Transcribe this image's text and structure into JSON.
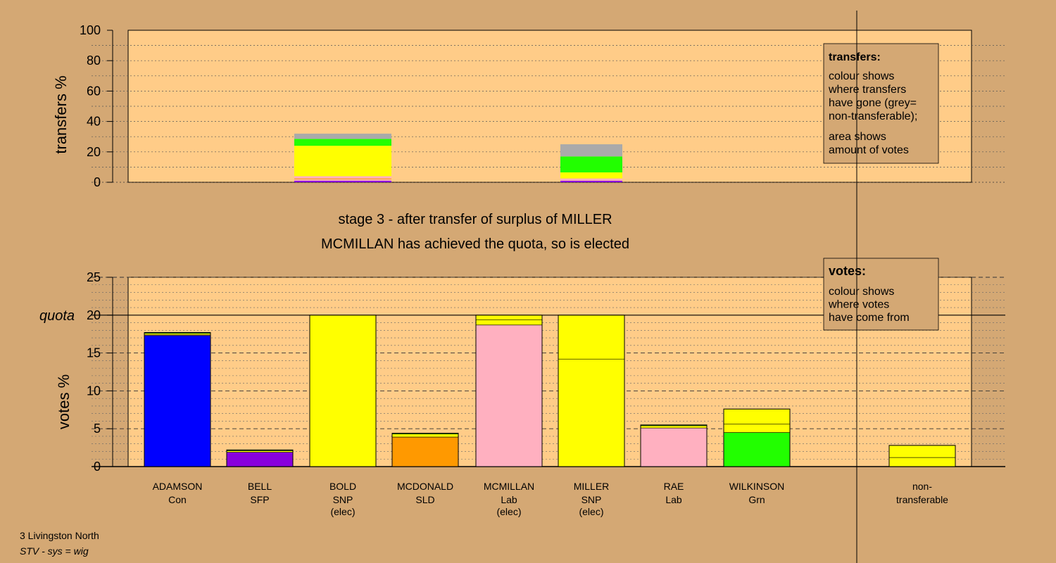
{
  "colors": {
    "background": "#d4a874",
    "plot_bg": "#ffcc88",
    "Con": "#0000ff",
    "SFP": "#8800dd",
    "SNP": "#ffff00",
    "SLD": "#ff9900",
    "Lab": "#ffb0c0",
    "Grn": "#22ff00",
    "non_transferable": "#aaaaaa"
  },
  "stage_title": "stage 3 - after transfer of surplus of MILLER",
  "stage_subtitle": "MCMILLAN has achieved the quota, so is elected",
  "footer": {
    "line1": "3 Livingston North",
    "line2": "STV - sys = wig"
  },
  "chart_data": [
    {
      "type": "bar",
      "stacked": true,
      "ylabel": "transfers %",
      "ylim": [
        0,
        100
      ],
      "yticks": [
        0,
        20,
        40,
        60,
        80,
        100
      ],
      "grid": true,
      "legend": {
        "title": "transfers:",
        "lines1": [
          "colour shows",
          "where transfers",
          "have gone (grey=",
          "non-transferable);"
        ],
        "lines2": [
          "area shows",
          "amount of votes"
        ]
      },
      "columns": [
        {
          "candidate": "BOLD",
          "segments": [
            {
              "party": "SFP",
              "value": 1
            },
            {
              "party": "Lab",
              "value": 1
            },
            {
              "party": "SLD",
              "value": 0.5
            },
            {
              "party": "Lab",
              "value": 1.5
            },
            {
              "party": "SNP",
              "value": 20
            },
            {
              "party": "Grn",
              "value": 4.5
            },
            {
              "party": "non_transferable",
              "value": 3.5
            }
          ]
        },
        {
          "candidate": "MILLER",
          "segments": [
            {
              "party": "SFP",
              "value": 1
            },
            {
              "party": "Lab",
              "value": 1.5
            },
            {
              "party": "SNP",
              "value": 4
            },
            {
              "party": "Grn",
              "value": 10.5
            },
            {
              "party": "non_transferable",
              "value": 8
            }
          ]
        }
      ]
    },
    {
      "type": "bar",
      "stacked": true,
      "ylabel": "votes %",
      "ylim": [
        0,
        25
      ],
      "yticks": [
        0,
        5,
        10,
        15,
        20,
        25
      ],
      "quota": 20,
      "quota_label": "quota",
      "grid": true,
      "legend": {
        "title": "votes:",
        "lines1": [
          "colour shows",
          "where votes",
          "have come from"
        ]
      },
      "candidates": [
        {
          "name": "ADAMSON",
          "party": "Con",
          "elected": "",
          "segments": [
            {
              "party": "Con",
              "value": 17.3
            },
            {
              "party": "Lab",
              "value": 0.1
            },
            {
              "party": "SNP",
              "value": 0.2
            },
            {
              "party": "Grn",
              "value": 0.1
            }
          ]
        },
        {
          "name": "BELL",
          "party": "SFP",
          "elected": "",
          "segments": [
            {
              "party": "SFP",
              "value": 1.9
            },
            {
              "party": "SNP",
              "value": 0.2
            },
            {
              "party": "Grn",
              "value": 0.1
            }
          ]
        },
        {
          "name": "BOLD",
          "party": "SNP",
          "elected": "(elec)",
          "segments": [
            {
              "party": "SNP",
              "value": 20
            }
          ]
        },
        {
          "name": "MCDONALD",
          "party": "SLD",
          "elected": "",
          "segments": [
            {
              "party": "SLD",
              "value": 3.9
            },
            {
              "party": "SNP",
              "value": 0.4
            },
            {
              "party": "Grn",
              "value": 0.1
            }
          ]
        },
        {
          "name": "MCMILLAN",
          "party": "Lab",
          "elected": "(elec)",
          "segments": [
            {
              "party": "Lab",
              "value": 18.7
            },
            {
              "party": "SNP",
              "value": 0.7
            },
            {
              "party": "SNP",
              "value": 0.6
            }
          ]
        },
        {
          "name": "MILLER",
          "party": "SNP",
          "elected": "(elec)",
          "segments": [
            {
              "party": "SNP",
              "value": 14.2
            },
            {
              "party": "SNP",
              "value": 5.8
            }
          ]
        },
        {
          "name": "RAE",
          "party": "Lab",
          "elected": "",
          "segments": [
            {
              "party": "Lab",
              "value": 5.1
            },
            {
              "party": "SNP",
              "value": 0.3
            },
            {
              "party": "Grn",
              "value": 0.1
            }
          ]
        },
        {
          "name": "WILKINSON",
          "party": "Grn",
          "elected": "",
          "segments": [
            {
              "party": "Grn",
              "value": 4.5
            },
            {
              "party": "SNP",
              "value": 1.1
            },
            {
              "party": "SNP",
              "value": 2.0
            }
          ]
        }
      ],
      "non_transferable": {
        "label_line1": "non-",
        "label_line2": "transferable",
        "segments": [
          {
            "party": "SNP",
            "value": 1.2
          },
          {
            "party": "SNP",
            "value": 1.6
          }
        ]
      }
    }
  ]
}
